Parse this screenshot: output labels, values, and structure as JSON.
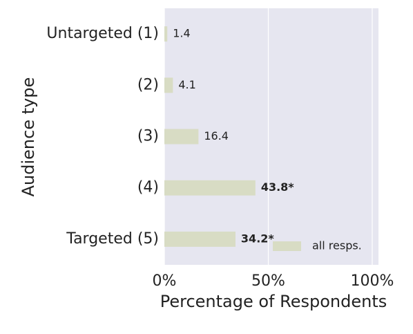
{
  "chart_data": {
    "type": "barh",
    "ylabel": "Audience type",
    "xlabel": "Percentage of Respondents",
    "categories": [
      "Untargeted (1)",
      "(2)",
      "(3)",
      "(4)",
      "Targeted (5)"
    ],
    "series": [
      {
        "name": "all resps.",
        "color": "#d8dcc4",
        "values": [
          1.4,
          4.1,
          16.4,
          43.8,
          34.2
        ],
        "value_labels": [
          "1.4",
          "4.1",
          "16.4",
          "43.8*",
          "34.2*"
        ]
      }
    ],
    "xlim": [
      0,
      103
    ],
    "xticks": [
      {
        "value": 0,
        "label": "0%"
      },
      {
        "value": 50,
        "label": "50%"
      },
      {
        "value": 100,
        "label": "100%"
      }
    ],
    "grid": true,
    "legend": "lower right"
  }
}
